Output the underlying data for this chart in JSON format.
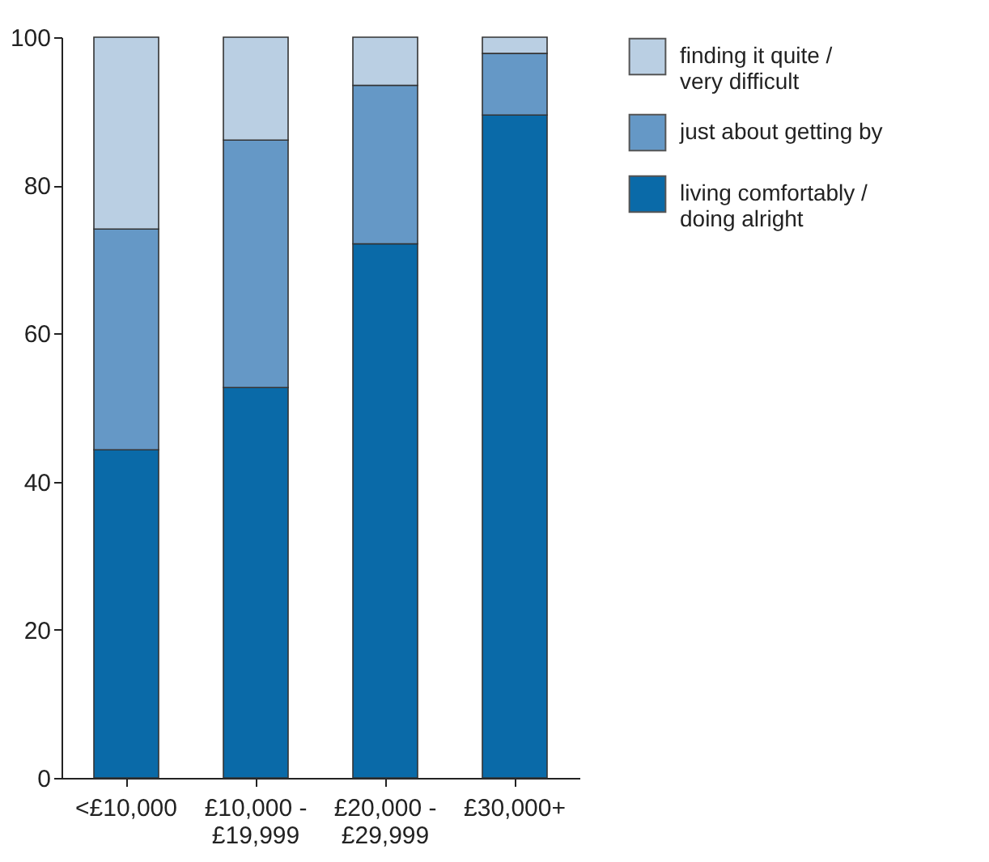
{
  "chart_data": {
    "type": "bar",
    "stacked": true,
    "categories": [
      "<£10,000",
      "£10,000 -\n£19,999",
      "£20,000 -\n£29,999",
      "£30,000+"
    ],
    "series": [
      {
        "name": "living comfortably /\ndoing alright",
        "color": "#0a6aa8",
        "values": [
          44.3,
          52.7,
          72.1,
          89.5
        ]
      },
      {
        "name": "just about getting by",
        "color": "#6598c6",
        "values": [
          29.8,
          33.4,
          21.4,
          8.3
        ]
      },
      {
        "name": "finding it quite /\nvery difficult",
        "color": "#bacfe3",
        "values": [
          25.9,
          13.9,
          6.5,
          2.2
        ]
      }
    ],
    "ylim": [
      0,
      100
    ],
    "yticks": [
      0,
      20,
      40,
      60,
      80,
      100
    ],
    "legend": "right",
    "grid": false
  }
}
